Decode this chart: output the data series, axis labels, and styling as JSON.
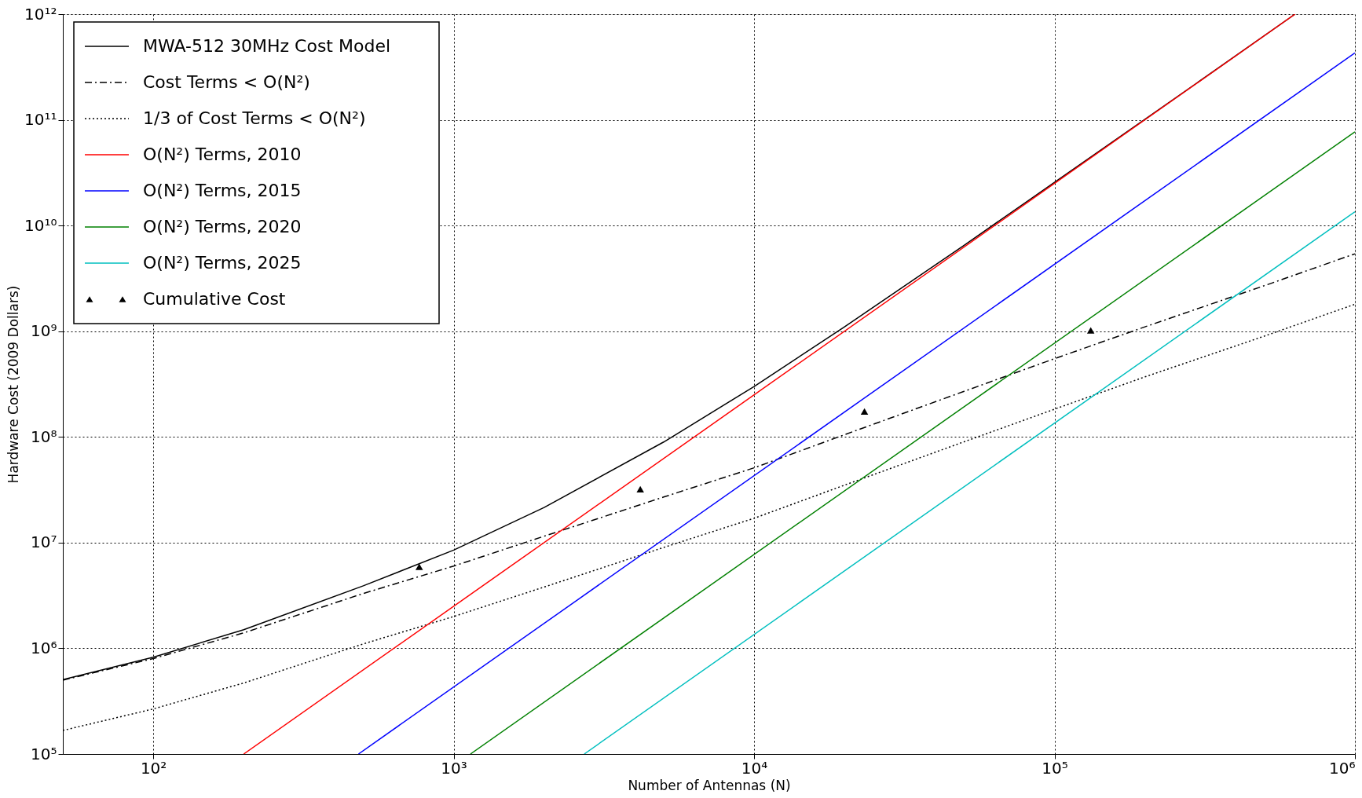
{
  "chart_data": {
    "type": "line",
    "xlabel": "Number of Antennas (N)",
    "ylabel": "Hardware Cost (2009 Dollars)",
    "log": "xy",
    "grid": true,
    "legend": "top left",
    "xlim": [
      50,
      1000000
    ],
    "ylim": [
      100000,
      1000000000000
    ],
    "xticks": [
      {
        "value": 100,
        "label": "10²"
      },
      {
        "value": 1000,
        "label": "10³"
      },
      {
        "value": 10000,
        "label": "10⁴"
      },
      {
        "value": 100000,
        "label": "10⁵"
      },
      {
        "value": 1000000,
        "label": "10⁶"
      }
    ],
    "yticks": [
      {
        "value": 100000,
        "label": "10⁵"
      },
      {
        "value": 1000000,
        "label": "10⁶"
      },
      {
        "value": 10000000,
        "label": "10⁷"
      },
      {
        "value": 100000000,
        "label": "10⁸"
      },
      {
        "value": 1000000000,
        "label": "10⁹"
      },
      {
        "value": 10000000000,
        "label": "10¹⁰"
      },
      {
        "value": 100000000000,
        "label": "10¹¹"
      },
      {
        "value": 1000000000000,
        "label": "10¹²"
      }
    ],
    "series": [
      {
        "name": "MWA-512 30MHz Cost Model",
        "color": "#000000",
        "line_style": "solid",
        "x": [
          50,
          100,
          200,
          500,
          1000,
          2000,
          5000,
          10000,
          20000,
          50000,
          100000,
          200000,
          632000
        ],
        "values": [
          506000,
          825000,
          1500000,
          3900000,
          8500000,
          21500000,
          89500000,
          300000000,
          1100000000,
          6500000000,
          25600000000,
          101000000000,
          1000000000000
        ]
      },
      {
        "name": "Cost Terms < O(N²)",
        "color": "#000000",
        "line_style": "dashed",
        "x": [
          50,
          100,
          200,
          500,
          1000,
          2000,
          5000,
          10000,
          20000,
          50000,
          100000,
          200000,
          500000,
          1000000
        ],
        "values": [
          500000,
          800000,
          1400000,
          3300000,
          6000000,
          11500000,
          27000000,
          51000000,
          105000000,
          270000000,
          550000000,
          1100000000,
          2700000000,
          5400000000
        ]
      },
      {
        "name": "1/3 of Cost Terms < O(N²)",
        "color": "#000000",
        "line_style": "dotted",
        "x": [
          50,
          100,
          200,
          500,
          1000,
          2000,
          5000,
          10000,
          20000,
          50000,
          100000,
          200000,
          500000,
          1000000
        ],
        "values": [
          167000,
          267000,
          470000,
          1100000,
          2000000,
          3800000,
          9000000,
          17000000,
          35000000,
          90000000,
          183000000,
          370000000,
          900000000,
          1800000000
        ]
      },
      {
        "name": "O(N²) Terms, 2010",
        "color": "#ff0000",
        "line_style": "solid",
        "x": [
          200,
          632000
        ],
        "values": [
          100000,
          1000000000000
        ]
      },
      {
        "name": "O(N²) Terms, 2015",
        "color": "#0000ff",
        "line_style": "solid",
        "x": [
          482,
          1000000
        ],
        "values": [
          100000,
          430000000000
        ]
      },
      {
        "name": "O(N²) Terms, 2020",
        "color": "#008000",
        "line_style": "solid",
        "x": [
          1137,
          1000000
        ],
        "values": [
          100000,
          77000000000
        ]
      },
      {
        "name": "O(N²) Terms, 2025",
        "color": "#00bfbf",
        "line_style": "solid",
        "x": [
          2720,
          1000000
        ],
        "values": [
          100000,
          13500000000
        ]
      },
      {
        "name": "Cumulative Cost",
        "type": "scatter",
        "marker": "triangle",
        "color": "#000000",
        "x": [
          768,
          4180,
          23300,
          132000
        ],
        "values": [
          5900000,
          32000000,
          174000000,
          1020000000
        ]
      }
    ]
  }
}
